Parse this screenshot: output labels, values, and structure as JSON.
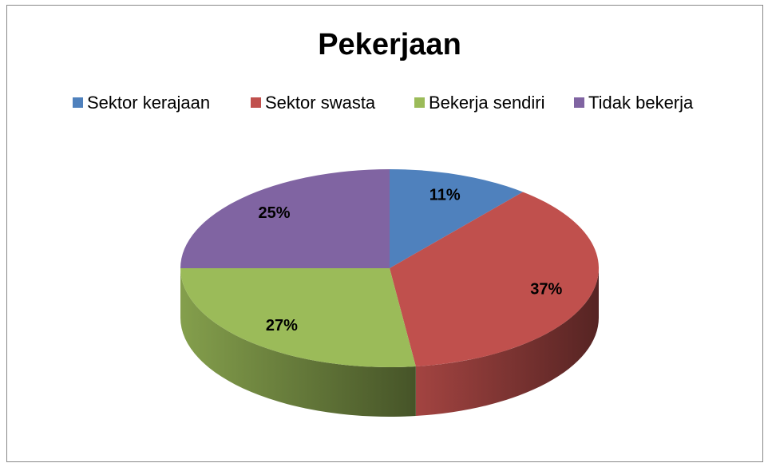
{
  "chart_data": {
    "type": "pie",
    "title": "Pekerjaan",
    "categories": [
      "Sektor kerajaan",
      "Sektor swasta",
      "Bekerja sendiri",
      "Tidak bekerja"
    ],
    "values": [
      11,
      37,
      27,
      25
    ],
    "value_labels": [
      "11%",
      "37%",
      "27%",
      "25%"
    ],
    "colors": [
      "#4f81bd",
      "#c0504d",
      "#9bbb59",
      "#8064a2"
    ],
    "legend": "top"
  }
}
